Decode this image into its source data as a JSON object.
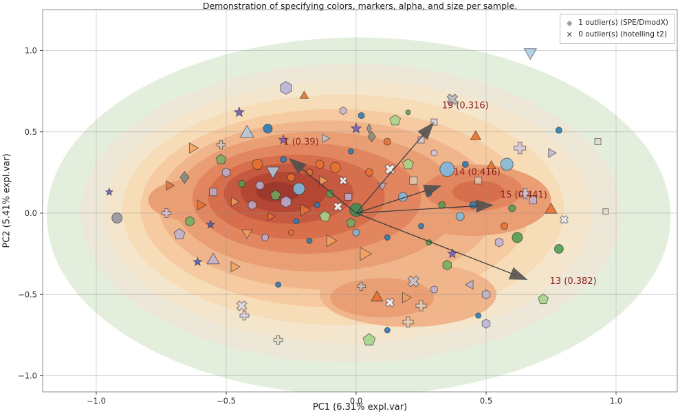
{
  "axes": {
    "xticks": [
      {
        "v": -1.0,
        "label": "−1.0"
      },
      {
        "v": -0.5,
        "label": "−0.5"
      },
      {
        "v": 0.0,
        "label": "0.0"
      },
      {
        "v": 0.5,
        "label": "0.5"
      },
      {
        "v": 1.0,
        "label": "1.0"
      }
    ],
    "yticks": [
      {
        "v": 1.0,
        "label": "1.0"
      },
      {
        "v": 0.5,
        "label": "0.5"
      },
      {
        "v": 0.0,
        "label": "0.0"
      },
      {
        "v": -0.5,
        "label": "−0.5"
      },
      {
        "v": -1.0,
        "label": "−1.0"
      }
    ]
  },
  "legend": {
    "items": [
      {
        "marker": "diamond",
        "label": "1 outlier(s) (SPE/DmodX)"
      },
      {
        "marker": "x",
        "label": "0 outlier(s) (hotelling t2)"
      }
    ]
  },
  "chart_data": {
    "type": "scatter",
    "title": "Demonstration of specifying colors, markers, alpha, and size per sample.",
    "xlabel": "PC1 (6.31% expl.var)",
    "ylabel": "PC2 (5.41% expl.var)",
    "xlim": [
      -1.21,
      1.24
    ],
    "ylim": [
      -1.1,
      1.25
    ],
    "grid": true,
    "loadings": [
      {
        "feature": "1",
        "value": 0.39,
        "tip": [
          -0.26,
          0.34
        ],
        "label": "1 (0.39)",
        "label_pos": [
          -0.28,
          0.42
        ]
      },
      {
        "feature": "19",
        "value": 0.316,
        "tip": [
          0.3,
          0.56
        ],
        "label": "19 (0.316)",
        "label_pos": [
          0.33,
          0.645
        ]
      },
      {
        "feature": "14",
        "value": 0.416,
        "tip": [
          0.33,
          0.17
        ],
        "label": "14 (0.416)",
        "label_pos": [
          0.375,
          0.235
        ]
      },
      {
        "feature": "15",
        "value": 0.441,
        "tip": [
          0.53,
          0.05
        ],
        "label": "15 (0.441)",
        "label_pos": [
          0.555,
          0.095
        ]
      },
      {
        "feature": "13",
        "value": 0.382,
        "tip": [
          0.66,
          -0.41
        ],
        "label": "13 (0.382)",
        "label_pos": [
          0.745,
          -0.435
        ]
      }
    ],
    "density_contours": [
      [
        0.01,
        -0.02,
        1.2,
        1.1,
        "#e4eedd"
      ],
      [
        -0.02,
        0.0,
        1.04,
        0.92,
        "#ece7d6"
      ],
      [
        -0.03,
        0.01,
        0.94,
        0.81,
        "#f3e6cc"
      ],
      [
        -0.05,
        0.02,
        0.85,
        0.71,
        "#f7dcb8"
      ],
      [
        -0.08,
        0.03,
        0.75,
        0.61,
        "#f6cba1"
      ],
      [
        -0.11,
        0.05,
        0.65,
        0.52,
        "#f1b58b"
      ],
      [
        0.2,
        -0.5,
        0.34,
        0.2,
        "#f1b58b"
      ],
      [
        -0.15,
        0.07,
        0.55,
        0.43,
        "#ea9e74"
      ],
      [
        0.1,
        -0.52,
        0.2,
        0.12,
        "#ea9e74"
      ],
      [
        0.45,
        0.08,
        0.3,
        0.22,
        "#ea9e74"
      ],
      [
        -0.62,
        0.08,
        0.18,
        0.13,
        "#ea9e74"
      ],
      [
        -0.19,
        0.09,
        0.44,
        0.34,
        "#e28660"
      ],
      [
        0.45,
        0.14,
        0.19,
        0.13,
        "#e28660"
      ],
      [
        -0.23,
        0.1,
        0.34,
        0.26,
        "#d76f4d"
      ],
      [
        0.47,
        0.13,
        0.1,
        0.07,
        "#d76f4d"
      ],
      [
        -0.26,
        0.12,
        0.25,
        0.185,
        "#c65a40"
      ],
      [
        -0.28,
        0.13,
        0.165,
        0.125,
        "#b34734"
      ],
      [
        -0.3,
        0.13,
        0.085,
        0.062,
        "#9d3a2d"
      ]
    ],
    "point_fields": [
      "x",
      "y",
      "marker",
      "color",
      "size",
      "alpha"
    ],
    "points": [
      [
        -0.92,
        -0.03,
        "circle",
        "#8f8f96",
        15,
        0.85
      ],
      [
        -0.95,
        0.13,
        "star",
        "#6a5bbf",
        9,
        0.9
      ],
      [
        -0.73,
        0.0,
        "plus",
        "#cdc8e2",
        13,
        0.8
      ],
      [
        -0.66,
        0.22,
        "diamond",
        "#7e8a7e",
        17,
        0.85
      ],
      [
        -0.72,
        0.17,
        "triangle-right",
        "#e8702e",
        13,
        0.8
      ],
      [
        -0.63,
        0.4,
        "triangle-right",
        "#f2a25c",
        15,
        0.8
      ],
      [
        -0.52,
        0.42,
        "plus",
        "#c4c4c8",
        12,
        0.7
      ],
      [
        -0.45,
        0.62,
        "star",
        "#6a5bbf",
        12,
        0.9
      ],
      [
        -0.42,
        0.49,
        "triangle-up",
        "#a9cbe4",
        20,
        0.8
      ],
      [
        -0.34,
        0.52,
        "circle",
        "#2e7bb4",
        13,
        0.9
      ],
      [
        -0.27,
        0.77,
        "hexagon",
        "#b9b3d8",
        17,
        0.9
      ],
      [
        -0.2,
        0.72,
        "triangle-up",
        "#e8702e",
        12,
        0.85
      ],
      [
        -0.28,
        0.45,
        "star",
        "#6a5bbf",
        11,
        0.85
      ],
      [
        -0.38,
        0.3,
        "circle",
        "#e8702e",
        15,
        0.9
      ],
      [
        -0.32,
        0.26,
        "triangle-down",
        "#a9cbe4",
        19,
        0.85
      ],
      [
        -0.28,
        0.33,
        "circle",
        "#2e7bb4",
        9,
        0.9
      ],
      [
        -0.25,
        0.22,
        "circle",
        "#e8702e",
        11,
        0.85
      ],
      [
        -0.37,
        0.17,
        "circle",
        "#b9b3d8",
        12,
        0.8
      ],
      [
        -0.31,
        0.11,
        "pentagon",
        "#6fae5f",
        14,
        0.85
      ],
      [
        -0.27,
        0.07,
        "hexagon",
        "#b9b3d8",
        15,
        0.85
      ],
      [
        -0.22,
        0.15,
        "circle",
        "#7db8dd",
        17,
        0.9
      ],
      [
        -0.18,
        0.25,
        "circle",
        "#e8702e",
        10,
        0.85
      ],
      [
        -0.14,
        0.3,
        "hexagon",
        "#e8702e",
        12,
        0.8
      ],
      [
        -0.13,
        0.2,
        "triangle-right",
        "#f2a25c",
        14,
        0.8
      ],
      [
        -0.1,
        0.12,
        "circle",
        "#4f9e4f",
        11,
        0.85
      ],
      [
        -0.08,
        0.28,
        "circle",
        "#e8702e",
        15,
        0.9
      ],
      [
        -0.05,
        0.2,
        "x",
        "#efefef",
        12,
        0.95
      ],
      [
        -0.2,
        0.02,
        "triangle-right",
        "#e8702e",
        17,
        0.85
      ],
      [
        -0.15,
        0.05,
        "circle",
        "#2e7bb4",
        8,
        0.9
      ],
      [
        -0.12,
        -0.02,
        "pentagon",
        "#a5d58a",
        15,
        0.85
      ],
      [
        -0.07,
        0.04,
        "x",
        "#efefef",
        13,
        0.95
      ],
      [
        -0.03,
        0.1,
        "square",
        "#b9b3d8",
        10,
        0.8
      ],
      [
        0.0,
        0.02,
        "circle",
        "#3d8b57",
        19,
        0.9
      ],
      [
        -0.02,
        -0.06,
        "pentagon",
        "#6fae5f",
        13,
        0.8
      ],
      [
        0.0,
        0.52,
        "star",
        "#6a5bbf",
        12,
        0.85
      ],
      [
        0.02,
        0.6,
        "circle",
        "#2e7bb4",
        9,
        0.9
      ],
      [
        0.15,
        0.57,
        "pentagon",
        "#a5d58a",
        15,
        0.85
      ],
      [
        0.05,
        0.52,
        "thin-diamond",
        "#8f8f96",
        13,
        0.85
      ],
      [
        0.06,
        0.47,
        "diamond",
        "#7e8a7e",
        15,
        0.8
      ],
      [
        0.37,
        0.7,
        "x",
        "#b7b7bd",
        16,
        0.9
      ],
      [
        0.67,
        0.99,
        "triangle-down",
        "#a9cbe4",
        18,
        0.85
      ],
      [
        0.78,
        0.51,
        "circle",
        "#2e7bb4",
        9,
        0.9
      ],
      [
        0.93,
        0.44,
        "square",
        "#ded8c4",
        9,
        0.7
      ],
      [
        0.25,
        0.45,
        "square",
        "#cdc8e2",
        9,
        0.75
      ],
      [
        0.3,
        0.56,
        "square",
        "#cdc8e2",
        9,
        0.7
      ],
      [
        0.46,
        0.47,
        "triangle-up",
        "#e8702e",
        15,
        0.9
      ],
      [
        0.63,
        0.4,
        "plus",
        "#cdc8e2",
        17,
        0.8
      ],
      [
        0.75,
        0.37,
        "triangle-right",
        "#b9b3d8",
        13,
        0.8
      ],
      [
        -0.12,
        0.46,
        "triangle-right",
        "#a9cbe4",
        12,
        0.75
      ],
      [
        0.12,
        0.44,
        "circle",
        "#e8702e",
        10,
        0.85
      ],
      [
        0.2,
        0.3,
        "pentagon",
        "#a5d58a",
        15,
        0.85
      ],
      [
        -0.02,
        0.38,
        "circle",
        "#2e7bb4",
        8,
        0.9
      ],
      [
        0.05,
        0.25,
        "circle",
        "#e8702e",
        11,
        0.85
      ],
      [
        0.1,
        0.17,
        "triangle-down",
        "#b9b3d8",
        12,
        0.75
      ],
      [
        0.13,
        0.27,
        "x",
        "#efefef",
        15,
        0.95
      ],
      [
        0.18,
        0.1,
        "circle",
        "#7db8dd",
        13,
        0.85
      ],
      [
        0.22,
        0.2,
        "square",
        "#ded8c4",
        11,
        0.7
      ],
      [
        0.28,
        0.12,
        "circle",
        "#2e7bb4",
        8,
        0.9
      ],
      [
        0.33,
        0.05,
        "circle",
        "#4f9e4f",
        10,
        0.85
      ],
      [
        0.35,
        0.27,
        "circle",
        "#7db8dd",
        21,
        0.9
      ],
      [
        0.58,
        0.3,
        "circle",
        "#7db8dd",
        18,
        0.85
      ],
      [
        0.42,
        0.3,
        "circle",
        "#2e7bb4",
        9,
        0.9
      ],
      [
        0.52,
        0.29,
        "triangle-up",
        "#e8702e",
        13,
        0.85
      ],
      [
        0.45,
        0.05,
        "circle",
        "#2e7bb4",
        10,
        0.9
      ],
      [
        0.4,
        -0.02,
        "circle",
        "#7db8dd",
        12,
        0.85
      ],
      [
        0.65,
        0.12,
        "plus",
        "#cdc8e2",
        15,
        0.8
      ],
      [
        0.6,
        0.03,
        "circle",
        "#4f9e4f",
        10,
        0.85
      ],
      [
        0.68,
        0.08,
        "square",
        "#b9b3d8",
        11,
        0.75
      ],
      [
        0.75,
        0.02,
        "triangle-up",
        "#e8702e",
        17,
        0.9
      ],
      [
        0.8,
        -0.04,
        "x",
        "#efefef",
        12,
        0.95
      ],
      [
        0.96,
        0.01,
        "square",
        "#ded8c4",
        8,
        0.7
      ],
      [
        0.57,
        -0.08,
        "circle",
        "#e8702e",
        10,
        0.85
      ],
      [
        0.62,
        -0.15,
        "circle",
        "#4f9e4f",
        15,
        0.9
      ],
      [
        0.78,
        -0.22,
        "circle",
        "#4f9e4f",
        13,
        0.9
      ],
      [
        0.55,
        -0.18,
        "hexagon",
        "#b9b3d8",
        12,
        0.8
      ],
      [
        0.37,
        -0.25,
        "star",
        "#6a5bbf",
        11,
        0.85
      ],
      [
        -0.42,
        -0.12,
        "triangle-down",
        "#f2a25c",
        15,
        0.8
      ],
      [
        -0.35,
        -0.15,
        "circle",
        "#b9b3d8",
        10,
        0.8
      ],
      [
        -0.55,
        -0.29,
        "triangle-up",
        "#b9b3d8",
        18,
        0.8
      ],
      [
        -0.61,
        -0.3,
        "star",
        "#4858c0",
        10,
        0.85
      ],
      [
        -0.47,
        -0.33,
        "triangle-right",
        "#f2a25c",
        15,
        0.8
      ],
      [
        -0.64,
        -0.05,
        "hexagon",
        "#6fae5f",
        13,
        0.85
      ],
      [
        -0.56,
        -0.07,
        "star",
        "#4858c0",
        10,
        0.85
      ],
      [
        -0.68,
        -0.13,
        "pentagon",
        "#b9b3d8",
        15,
        0.8
      ],
      [
        -0.55,
        0.13,
        "square",
        "#b9b3d8",
        11,
        0.75
      ],
      [
        -0.6,
        0.05,
        "triangle-right",
        "#e8702e",
        15,
        0.85
      ],
      [
        -0.47,
        0.07,
        "triangle-right",
        "#f2a25c",
        13,
        0.8
      ],
      [
        -0.44,
        0.18,
        "circle",
        "#4f9e4f",
        10,
        0.85
      ],
      [
        -0.5,
        0.25,
        "hexagon",
        "#b9b3d8",
        12,
        0.8
      ],
      [
        -0.52,
        0.33,
        "pentagon",
        "#6fae5f",
        14,
        0.8
      ],
      [
        -0.25,
        -0.12,
        "circle",
        "#e8702e",
        8,
        0.85
      ],
      [
        -0.18,
        -0.17,
        "circle",
        "#2e7bb4",
        8,
        0.9
      ],
      [
        -0.1,
        -0.17,
        "triangle-right",
        "#f2a25c",
        17,
        0.8
      ],
      [
        0.0,
        -0.12,
        "circle",
        "#7db8dd",
        10,
        0.85
      ],
      [
        0.03,
        -0.25,
        "triangle-right",
        "#f2a25c",
        19,
        0.8
      ],
      [
        0.12,
        -0.15,
        "circle",
        "#2e7bb4",
        8,
        0.9
      ],
      [
        0.28,
        -0.18,
        "circle",
        "#4f9e4f",
        8,
        0.85
      ],
      [
        0.25,
        -0.08,
        "circle",
        "#2e7bb4",
        8,
        0.9
      ],
      [
        0.35,
        -0.32,
        "hexagon",
        "#6fae5f",
        13,
        0.85
      ],
      [
        -0.44,
        -0.57,
        "x",
        "#d8d8dc",
        15,
        0.9
      ],
      [
        -0.3,
        -0.44,
        "circle",
        "#2e7bb4",
        8,
        0.9
      ],
      [
        0.02,
        -0.45,
        "plus",
        "#c4c4c8",
        12,
        0.7
      ],
      [
        0.08,
        -0.52,
        "triangle-up",
        "#e8702e",
        17,
        0.9
      ],
      [
        0.13,
        -0.55,
        "x",
        "#efefef",
        13,
        0.95
      ],
      [
        0.19,
        -0.52,
        "triangle-right",
        "#f2a25c",
        15,
        0.8
      ],
      [
        0.25,
        -0.57,
        "plus",
        "#ded8c4",
        15,
        0.7
      ],
      [
        0.22,
        -0.42,
        "x",
        "#c4c4c8",
        17,
        0.85
      ],
      [
        0.3,
        -0.47,
        "circle",
        "#b9b3d8",
        10,
        0.8
      ],
      [
        0.44,
        -0.44,
        "triangle-left",
        "#b9b3d8",
        13,
        0.8
      ],
      [
        0.5,
        -0.5,
        "hexagon",
        "#b9b3d8",
        12,
        0.8
      ],
      [
        0.72,
        -0.53,
        "pentagon",
        "#a5d58a",
        14,
        0.9
      ],
      [
        -0.43,
        -0.63,
        "plus",
        "#cdc8e2",
        13,
        0.7
      ],
      [
        -0.3,
        -0.78,
        "plus",
        "#ded8c4",
        13,
        0.6
      ],
      [
        0.05,
        -0.78,
        "pentagon",
        "#a5d58a",
        17,
        0.9
      ],
      [
        0.12,
        -0.72,
        "circle",
        "#2e7bb4",
        8,
        0.9
      ],
      [
        0.2,
        -0.67,
        "plus",
        "#ded8c4",
        15,
        0.6
      ],
      [
        0.47,
        -0.63,
        "circle",
        "#2e7bb4",
        8,
        0.9
      ],
      [
        0.5,
        -0.68,
        "hexagon",
        "#b9b3d8",
        12,
        0.8
      ],
      [
        -0.33,
        -0.02,
        "triangle-right",
        "#e8702e",
        12,
        0.85
      ],
      [
        -0.23,
        -0.05,
        "circle",
        "#2e7bb4",
        8,
        0.9
      ],
      [
        -0.4,
        0.05,
        "hexagon",
        "#b9b3d8",
        12,
        0.8
      ],
      [
        0.3,
        0.37,
        "circle",
        "#cdc8e2",
        9,
        0.8
      ],
      [
        0.2,
        0.62,
        "circle",
        "#4f9e4f",
        7,
        0.85
      ],
      [
        0.47,
        0.2,
        "square",
        "#ded8c4",
        10,
        0.65
      ],
      [
        -0.05,
        0.63,
        "hexagon",
        "#b9b3d8",
        10,
        0.75
      ]
    ]
  },
  "colors": {
    "loading_label": "#8b2020",
    "arrow": "#4e4e4e",
    "grid": "#8e8e8e",
    "axis_frame": "#8a8a8a"
  }
}
